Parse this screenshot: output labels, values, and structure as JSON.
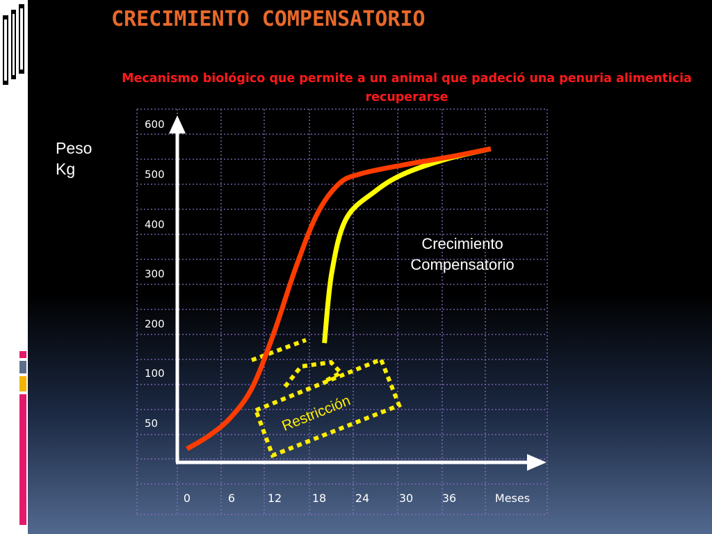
{
  "title": "CRECIMIENTO COMPENSATORIO",
  "subtitle": "Mecanismo biológico que permite a un animal que padeció una penuria alimenticia recuperarse",
  "colors": {
    "title": "#e8692a",
    "subtitle": "#ff1a1a",
    "normal_curve": "#ff3c00",
    "compensatory_curve": "#ffff00",
    "restriction_box": "#ffee00",
    "grid": "#8a6fc4",
    "axes": "#ffffff"
  },
  "chart_data": {
    "type": "line",
    "xlabel": "Meses",
    "ylabel": "Peso\nKg",
    "x_ticks": [
      "0",
      "6",
      "12",
      "18",
      "24",
      "30",
      "36"
    ],
    "y_ticks": [
      "50",
      "100",
      "200",
      "300",
      "400",
      "500",
      "600"
    ],
    "grid": true,
    "series": [
      {
        "color": "#ff3c00",
        "points": [
          [
            0,
            10
          ],
          [
            3,
            30
          ],
          [
            6,
            55
          ],
          [
            9,
            85
          ],
          [
            12,
            180
          ],
          [
            15,
            310
          ],
          [
            18,
            420
          ],
          [
            21,
            480
          ],
          [
            24,
            500
          ],
          [
            30,
            518
          ],
          [
            36,
            533
          ],
          [
            42,
            550
          ]
        ]
      },
      {
        "color": "#ffff00",
        "points": [
          [
            19,
            160
          ],
          [
            20,
            300
          ],
          [
            22,
            410
          ],
          [
            26,
            465
          ],
          [
            30,
            500
          ],
          [
            36,
            530
          ],
          [
            42,
            550
          ]
        ]
      }
    ],
    "annotations": {
      "compensatory": "Crecimiento\nCompensatorio",
      "restriction": "Restricción"
    }
  }
}
